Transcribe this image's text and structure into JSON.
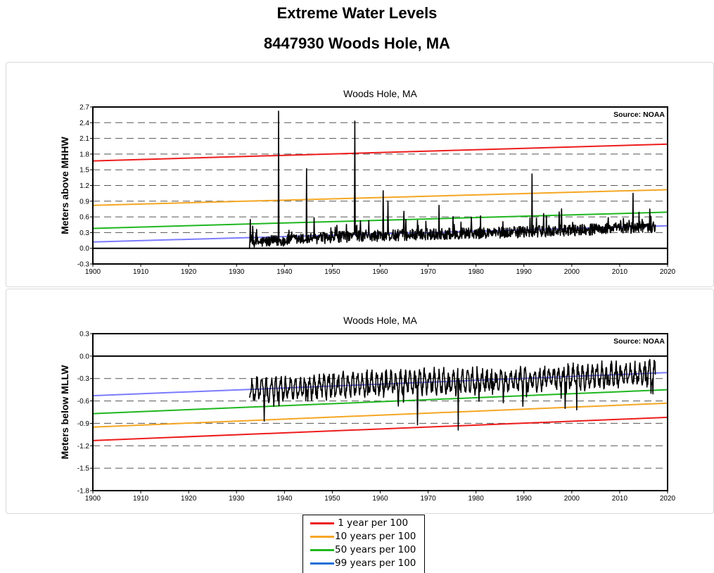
{
  "page": {
    "title": "Extreme Water Levels",
    "subtitle": "8447930 Woods Hole, MA"
  },
  "legend": {
    "items": [
      {
        "label": " 1 year per 100",
        "color": "#ee1c1c"
      },
      {
        "label": "10 years per 100",
        "color": "#f5a623"
      },
      {
        "label": "50 years per 100",
        "color": "#1fb71f"
      },
      {
        "label": "99 years per 100",
        "color": "#1f6fd6"
      }
    ]
  },
  "chart_data": [
    {
      "type": "line",
      "title": "Woods Hole, MA",
      "source_note": "Source: NOAA",
      "ylabel": "Meters above MHHW",
      "xlabel": "",
      "xlim": [
        1900,
        2020
      ],
      "ylim": [
        -0.3,
        2.7
      ],
      "x_ticks": [
        "1900",
        "1910",
        "1920",
        "1930",
        "1940",
        "1950",
        "1960",
        "1970",
        "1980",
        "1990",
        "2000",
        "2010",
        "2020"
      ],
      "y_ticks": [
        "2.7",
        "2.4",
        "2.1",
        "1.8",
        "1.5",
        "1.2",
        "0.9",
        "0.6",
        "0.3",
        "0.0",
        "-0.3"
      ],
      "gridlines": "dashed horizontal",
      "zero_line": 0.0,
      "trend_lines": [
        {
          "name": "1 year per 100",
          "color": "#ee1c1c",
          "x": [
            1900,
            2020
          ],
          "y": [
            1.67,
            1.99
          ]
        },
        {
          "name": "10 years per 100",
          "color": "#f5a623",
          "x": [
            1900,
            2020
          ],
          "y": [
            0.82,
            1.12
          ]
        },
        {
          "name": "50 years per 100",
          "color": "#1fb71f",
          "x": [
            1900,
            2020
          ],
          "y": [
            0.38,
            0.69
          ]
        },
        {
          "name": "99 years per 100",
          "color": "#7b7bff",
          "x": [
            1900,
            2020
          ],
          "y": [
            0.12,
            0.43
          ]
        }
      ],
      "monthly_series": {
        "color": "#000000",
        "start_year": 1932.7,
        "end_year": 2017.5,
        "base": [
          [
            1933,
            0.12
          ],
          [
            1950,
            0.22
          ],
          [
            1970,
            0.28
          ],
          [
            1990,
            0.32
          ],
          [
            2017,
            0.42
          ]
        ],
        "peaks": [
          {
            "x": 1932.9,
            "y": 0.55
          },
          {
            "x": 1938.8,
            "y": 2.62
          },
          {
            "x": 1944.6,
            "y": 1.52
          },
          {
            "x": 1954.7,
            "y": 2.43
          },
          {
            "x": 1960.6,
            "y": 1.1
          },
          {
            "x": 1961.6,
            "y": 0.9
          },
          {
            "x": 1972.3,
            "y": 0.82
          },
          {
            "x": 1991.7,
            "y": 1.42
          },
          {
            "x": 2012.8,
            "y": 1.05
          },
          {
            "x": 2016.3,
            "y": 0.75
          }
        ]
      }
    },
    {
      "type": "line",
      "title": "Woods Hole, MA",
      "source_note": "Source: NOAA",
      "ylabel": "Meters below MLLW",
      "xlabel": "",
      "xlim": [
        1900,
        2020
      ],
      "ylim": [
        -1.8,
        0.3
      ],
      "x_ticks": [
        "1900",
        "1910",
        "1920",
        "1930",
        "1940",
        "1950",
        "1960",
        "1970",
        "1980",
        "1990",
        "2000",
        "2010",
        "2020"
      ],
      "y_ticks": [
        "0.3",
        "0.0",
        "-0.3",
        "-0.6",
        "-0.9",
        "-1.2",
        "-1.5",
        "-1.8"
      ],
      "gridlines": "dashed horizontal",
      "zero_line": 0.0,
      "trend_lines": [
        {
          "name": "1 year per 100",
          "color": "#ee1c1c",
          "x": [
            1900,
            2020
          ],
          "y": [
            -1.13,
            -0.82
          ]
        },
        {
          "name": "10 years per 100",
          "color": "#f5a623",
          "x": [
            1900,
            2020
          ],
          "y": [
            -0.95,
            -0.63
          ]
        },
        {
          "name": "50 years per 100",
          "color": "#1fb71f",
          "x": [
            1900,
            2020
          ],
          "y": [
            -0.77,
            -0.45
          ]
        },
        {
          "name": "99 years per 100",
          "color": "#7b7bff",
          "x": [
            1900,
            2020
          ],
          "y": [
            -0.53,
            -0.22
          ]
        }
      ],
      "monthly_series": {
        "color": "#000000",
        "start_year": 1932.7,
        "end_year": 2017.5,
        "base": [
          [
            1933,
            -0.45
          ],
          [
            1950,
            -0.4
          ],
          [
            1970,
            -0.33
          ],
          [
            1990,
            -0.32
          ],
          [
            2017,
            -0.22
          ]
        ],
        "troughs": [
          {
            "x": 1935.8,
            "y": -0.87
          },
          {
            "x": 1967.8,
            "y": -0.92
          },
          {
            "x": 1976.3,
            "y": -0.99
          },
          {
            "x": 1998.6,
            "y": -0.7
          },
          {
            "x": 2001.0,
            "y": -0.72
          }
        ]
      }
    }
  ]
}
